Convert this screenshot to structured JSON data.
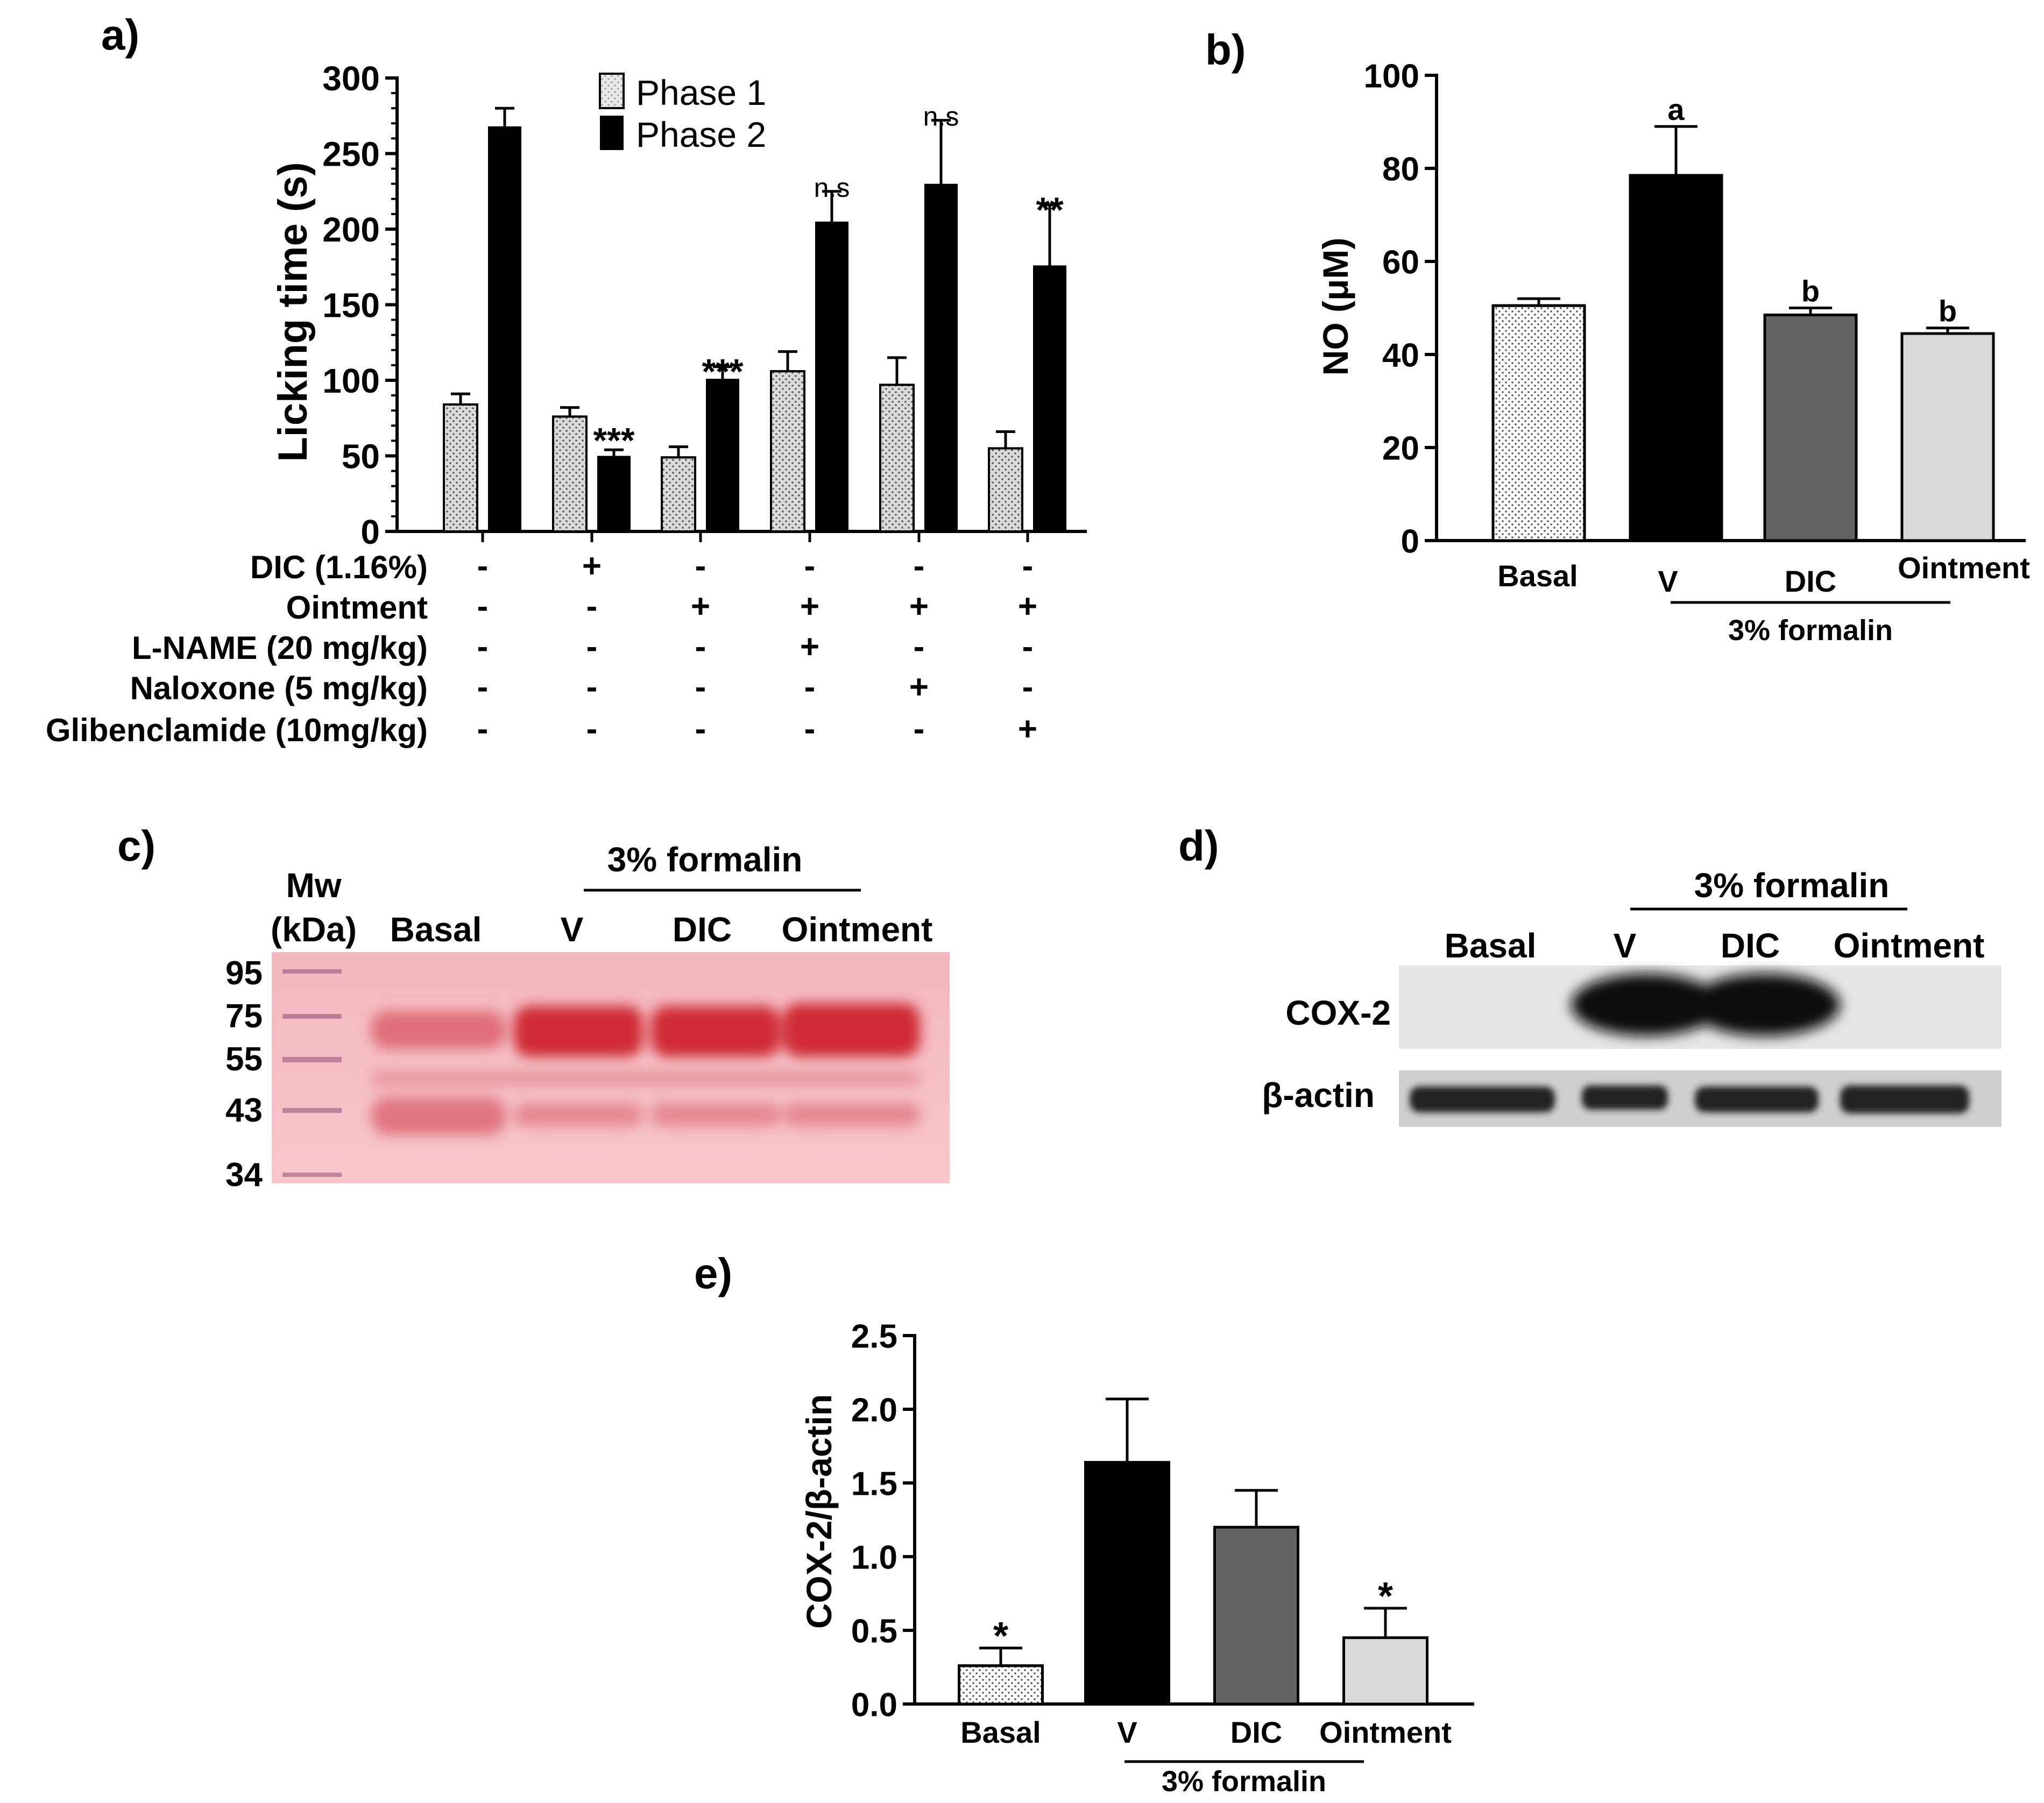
{
  "panel_labels": {
    "a": "a)",
    "b": "b)",
    "c": "c)",
    "d": "d)",
    "e": "e)"
  },
  "chart_data": [
    {
      "id": "a",
      "type": "bar",
      "ylabel": "Licking time (s)",
      "ylim": [
        0,
        300
      ],
      "yticks": [
        0,
        50,
        100,
        150,
        200,
        250,
        300
      ],
      "groups": 6,
      "series": [
        {
          "name": "Phase 1",
          "color": "#d9d9d9",
          "pattern": "dots",
          "values": [
            84,
            76,
            49,
            106,
            97,
            55
          ],
          "errors": [
            7,
            6,
            7,
            13,
            18,
            11
          ]
        },
        {
          "name": "Phase 2",
          "color": "#000000",
          "values": [
            268,
            50,
            101,
            205,
            230,
            176
          ],
          "errors": [
            12,
            4,
            8,
            20,
            42,
            40
          ]
        }
      ],
      "annotations": [
        {
          "group": 1,
          "series": 1,
          "text": "***"
        },
        {
          "group": 2,
          "series": 1,
          "text": "***"
        },
        {
          "group": 3,
          "series": 1,
          "text": "n.s"
        },
        {
          "group": 4,
          "series": 1,
          "text": "n.s"
        },
        {
          "group": 5,
          "series": 1,
          "text": "**"
        }
      ],
      "treatments": [
        {
          "label": "DIC (1.16%)",
          "signs": [
            "-",
            "+",
            "-",
            "-",
            "-",
            "-"
          ]
        },
        {
          "label": "Ointment",
          "signs": [
            "-",
            "-",
            "+",
            "+",
            "+",
            "+"
          ]
        },
        {
          "label": "L-NAME (20 mg/kg)",
          "signs": [
            "-",
            "-",
            "-",
            "+",
            "-",
            "-"
          ]
        },
        {
          "label": "Naloxone (5 mg/kg)",
          "signs": [
            "-",
            "-",
            "-",
            "-",
            "+",
            "-"
          ]
        },
        {
          "label": "Glibenclamide (10mg/kg)",
          "signs": [
            "-",
            "-",
            "-",
            "-",
            "-",
            "+"
          ]
        }
      ]
    },
    {
      "id": "b",
      "type": "bar",
      "ylabel": "NO (μM)",
      "ylim": [
        0,
        100
      ],
      "yticks": [
        0,
        20,
        40,
        60,
        80,
        100
      ],
      "categories": [
        "Basal",
        "V",
        "DIC",
        "Ointment"
      ],
      "values": [
        50.5,
        78.5,
        48.5,
        44.5
      ],
      "errors": [
        1.5,
        10.5,
        1.5,
        1.2
      ],
      "colors": [
        "#ffffff",
        "#000000",
        "#636363",
        "#d9d9d9"
      ],
      "patterns": [
        "dots",
        "",
        "",
        ""
      ],
      "letters": [
        "",
        "a",
        "b",
        "b"
      ],
      "group_label": "3% formalin"
    },
    {
      "id": "e",
      "type": "bar",
      "ylabel": "COX-2/β-actin",
      "ylim": [
        0,
        2.5
      ],
      "yticks": [
        "0.0",
        "0.5",
        "1.0",
        "1.5",
        "2.0",
        "2.5"
      ],
      "categories": [
        "Basal",
        "V",
        "DIC",
        "Ointment"
      ],
      "values": [
        0.26,
        1.64,
        1.2,
        0.45
      ],
      "errors": [
        0.12,
        0.43,
        0.25,
        0.2
      ],
      "colors": [
        "#ffffff",
        "#000000",
        "#636363",
        "#d9d9d9"
      ],
      "patterns": [
        "dots",
        "",
        "",
        ""
      ],
      "marks": [
        "*",
        "",
        "",
        "*"
      ],
      "group_label": "3% formalin"
    }
  ],
  "gel_c": {
    "mw_header": [
      "Mw",
      "(kDa)"
    ],
    "mw_values": [
      "95",
      "75",
      "55",
      "43",
      "34"
    ],
    "lane_labels": [
      "Basal",
      "V",
      "DIC",
      "Ointment"
    ],
    "group_label": "3% formalin"
  },
  "blot_d": {
    "lane_labels": [
      "Basal",
      "V",
      "DIC",
      "Ointment"
    ],
    "group_label": "3% formalin",
    "row_labels": [
      "COX-2",
      "β-actin"
    ]
  }
}
